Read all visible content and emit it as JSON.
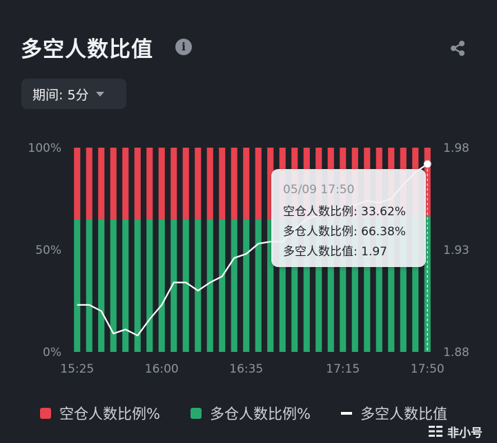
{
  "header": {
    "title": "多空人数比值",
    "info_icon": "info-icon",
    "share_icon": "share-icon"
  },
  "period_selector": {
    "label": "期间: 5分"
  },
  "tooltip": {
    "time": "05/09 17:50",
    "short_ratio": "空仓人数比例: 33.62%",
    "long_ratio": "多仓人数比例: 66.38%",
    "long_short_ratio": "多空人数比值: 1.97"
  },
  "legend": {
    "short": "空仓人数比例%",
    "long": "多仓人数比例%",
    "ratio": "多空人数比值"
  },
  "watermark": {
    "text": "非小号"
  },
  "colors": {
    "short": "#e8434f",
    "long": "#27a96e",
    "ratio_line": "#ffffff",
    "background": "#1e2128",
    "axis_text": "#8e949c"
  },
  "chart_data": {
    "type": "bar",
    "stacked": true,
    "x_tick_labels": [
      "15:25",
      "16:00",
      "16:35",
      "17:15",
      "17:50"
    ],
    "x_tick_index": [
      0,
      7,
      14,
      22,
      29
    ],
    "y_left_ticks": [
      "100%",
      "50%",
      "0%"
    ],
    "y_left_range": [
      0,
      100
    ],
    "y_right_ticks": [
      "1.98",
      "1.93",
      "1.88"
    ],
    "y_right_range": [
      1.88,
      1.98
    ],
    "series": [
      {
        "name": "空仓人数比例%",
        "axis": "left",
        "values": [
          35.0,
          35.0,
          35.0,
          35.0,
          35.0,
          35.0,
          35.0,
          35.0,
          35.0,
          35.0,
          35.0,
          35.0,
          35.0,
          35.0,
          35.0,
          35.0,
          35.0,
          35.0,
          34.8,
          34.8,
          34.8,
          34.8,
          34.5,
          34.5,
          34.3,
          34.0,
          34.0,
          33.8,
          33.7,
          33.62
        ]
      },
      {
        "name": "多仓人数比例%",
        "axis": "left",
        "values": [
          65.0,
          65.0,
          65.0,
          65.0,
          65.0,
          65.0,
          65.0,
          65.0,
          65.0,
          65.0,
          65.0,
          65.0,
          65.0,
          65.0,
          65.0,
          65.0,
          65.0,
          65.0,
          65.2,
          65.2,
          65.2,
          65.2,
          65.5,
          65.5,
          65.7,
          66.0,
          66.0,
          66.2,
          66.3,
          66.38
        ]
      },
      {
        "name": "多空人数比值",
        "axis": "right",
        "type": "line",
        "values": [
          1.903,
          1.903,
          1.9,
          1.889,
          1.891,
          1.888,
          1.896,
          1.903,
          1.914,
          1.914,
          1.91,
          1.914,
          1.917,
          1.926,
          1.928,
          1.933,
          1.934,
          1.934,
          1.94,
          1.945,
          1.947,
          1.95,
          1.951,
          1.952,
          1.954,
          1.953,
          1.955,
          1.962,
          1.968,
          1.972
        ]
      }
    ],
    "highlight_index": 29
  }
}
